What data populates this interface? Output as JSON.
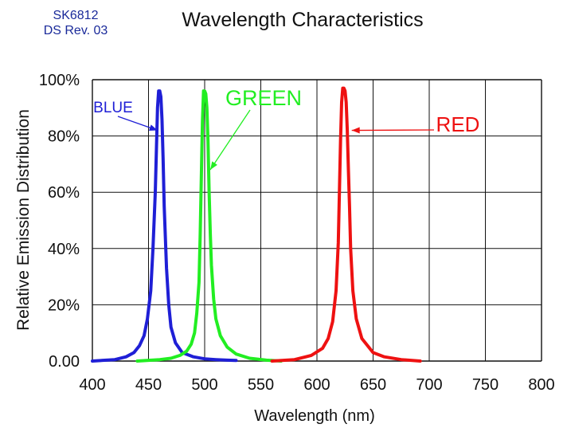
{
  "header": {
    "part_number": "SK6812",
    "revision": "DS Rev. 03"
  },
  "chart_data": {
    "type": "line",
    "title": "Wavelength Characteristics",
    "xlabel": "Wavelength (nm)",
    "ylabel": "Relative Emission Distribution",
    "xlim": [
      400,
      800
    ],
    "ylim": [
      0,
      100
    ],
    "x_ticks": [
      400,
      450,
      500,
      550,
      600,
      650,
      700,
      750,
      800
    ],
    "x_tick_labels": [
      "400",
      "450",
      "500",
      "550",
      "600",
      "650",
      "700",
      "750",
      "800"
    ],
    "y_ticks": [
      0,
      20,
      40,
      60,
      80,
      100
    ],
    "y_tick_labels": [
      "0.00",
      "20%",
      "40%",
      "60%",
      "80%",
      "100%"
    ],
    "grid": true,
    "colors": {
      "BLUE": "#1f1fd6",
      "GREEN": "#22ee22",
      "RED": "#ee1111"
    },
    "series": [
      {
        "name": "BLUE",
        "x": [
          400,
          420,
          430,
          437,
          442,
          446,
          449,
          452,
          454,
          456,
          457,
          458,
          459,
          460,
          461,
          462,
          463,
          464,
          466,
          468,
          470,
          474,
          480,
          490,
          500,
          510,
          520,
          528
        ],
        "y": [
          0,
          0.5,
          1.5,
          3,
          5.5,
          9,
          15,
          25,
          40,
          60,
          75,
          90,
          96,
          96,
          94,
          86,
          72,
          55,
          33,
          20,
          12,
          6.5,
          3,
          1.5,
          0.8,
          0.5,
          0.3,
          0.2
        ]
      },
      {
        "name": "GREEN",
        "x": [
          440,
          460,
          470,
          478,
          484,
          488,
          491,
          493,
          495,
          496,
          497,
          498,
          499,
          500,
          501,
          502,
          503,
          504,
          505,
          506,
          508,
          510,
          514,
          520,
          528,
          540,
          555,
          568
        ],
        "y": [
          0,
          0.5,
          1,
          2,
          3.5,
          6,
          10,
          17,
          28,
          45,
          65,
          85,
          96,
          96,
          95,
          90,
          78,
          60,
          45,
          34,
          22,
          15,
          9,
          5,
          2.5,
          1,
          0.3,
          0
        ]
      },
      {
        "name": "RED",
        "x": [
          560,
          580,
          595,
          605,
          610,
          614,
          617,
          619,
          620,
          621,
          622,
          623,
          624,
          625,
          626,
          627,
          628,
          629,
          630,
          632,
          635,
          640,
          650,
          660,
          675,
          692
        ],
        "y": [
          0,
          0.5,
          2,
          4.5,
          8,
          14,
          25,
          42,
          60,
          78,
          92,
          97,
          97,
          96,
          92,
          82,
          68,
          55,
          40,
          25,
          15,
          8,
          3,
          1.5,
          0.5,
          0
        ]
      }
    ],
    "annotations": [
      {
        "text": "BLUE",
        "series": "BLUE",
        "x": 458,
        "y": 82
      },
      {
        "text": "GREEN",
        "series": "GREEN",
        "x": 505,
        "y": 68
      },
      {
        "text": "RED",
        "series": "RED",
        "x": 631,
        "y": 82
      }
    ]
  }
}
